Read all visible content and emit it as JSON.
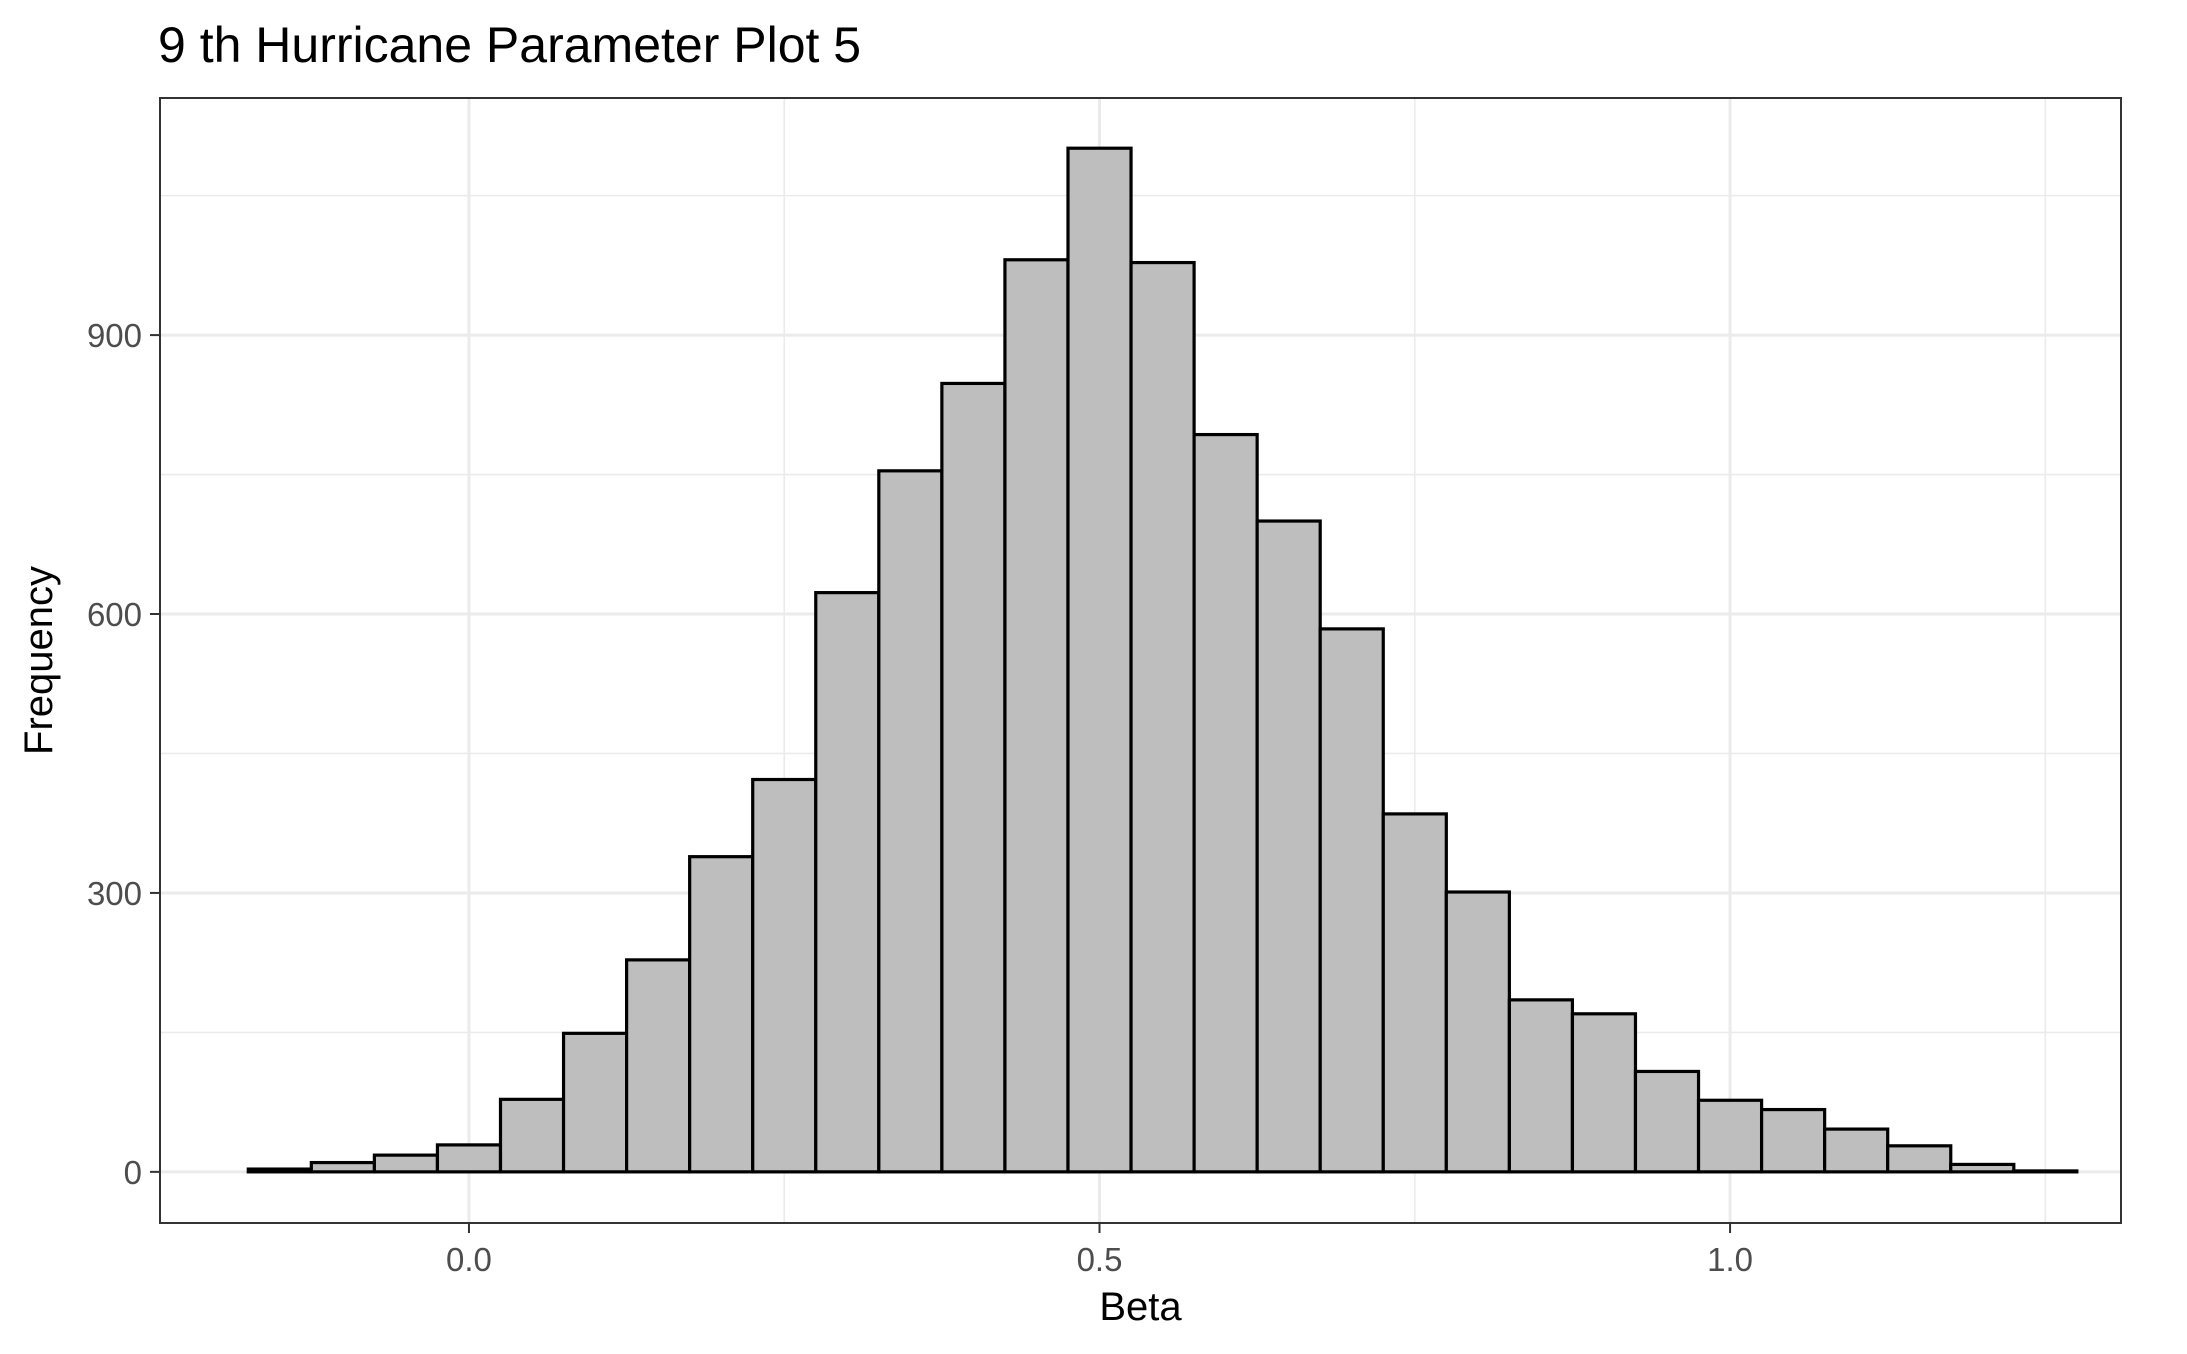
{
  "chart_data": {
    "type": "bar",
    "title": "9 th Hurricane Parameter Plot 5",
    "xlabel": "Beta",
    "ylabel": "Frequency",
    "xlim": [
      -0.245,
      1.31
    ],
    "ylim": [
      -55,
      1155
    ],
    "x_ticks": [
      0.0,
      0.5,
      1.0
    ],
    "x_tick_labels": [
      "0.0",
      "0.5",
      "1.0"
    ],
    "y_ticks": [
      0,
      300,
      600,
      900
    ],
    "y_tick_labels": [
      "0",
      "300",
      "600",
      "900"
    ],
    "grid": true,
    "bin_width": 0.05,
    "bin_centers": [
      -0.15,
      -0.1,
      -0.05,
      0.0,
      0.05,
      0.1,
      0.15,
      0.2,
      0.25,
      0.3,
      0.35,
      0.4,
      0.45,
      0.5,
      0.55,
      0.6,
      0.65,
      0.7,
      0.75,
      0.8,
      0.85,
      0.9,
      0.95,
      1.0,
      1.05,
      1.1,
      1.15,
      1.2,
      1.25
    ],
    "values": [
      3,
      10,
      18,
      29,
      78,
      149,
      228,
      339,
      422,
      623,
      754,
      848,
      981,
      1101,
      978,
      793,
      700,
      584,
      385,
      301,
      185,
      170,
      108,
      77,
      67,
      46,
      28,
      8,
      1
    ]
  }
}
